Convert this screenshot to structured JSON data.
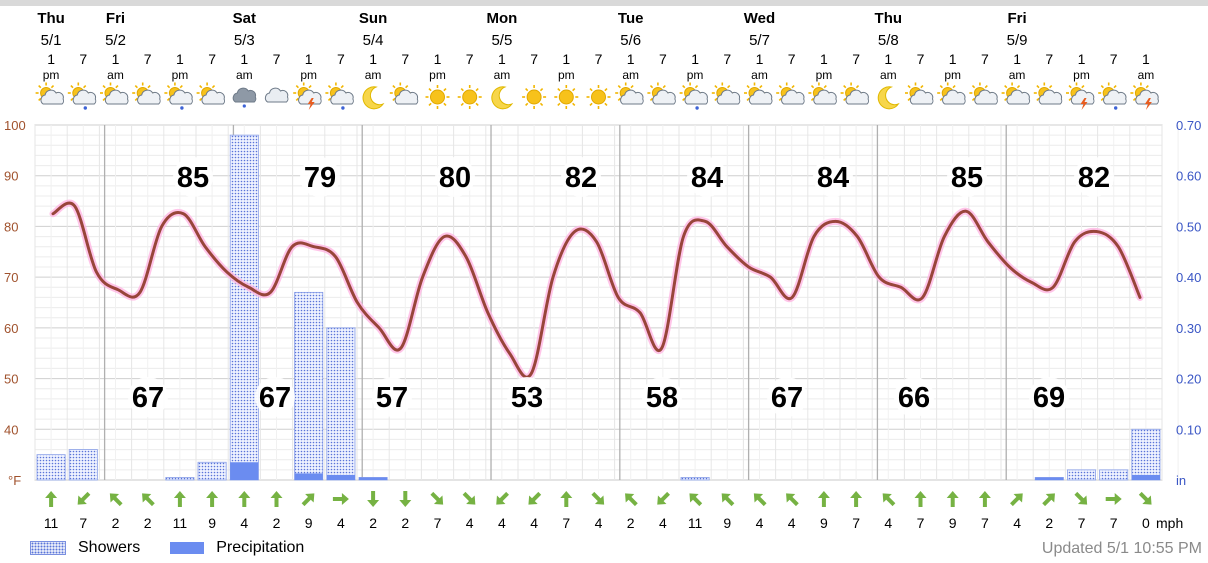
{
  "colors": {
    "temperature": "#98453a",
    "temperature_glow": "#ffb7e3",
    "precipitation": "#6b8cf0",
    "showers": "#5a74d8",
    "wind_arrow": "#76b243",
    "left_axis": "#a0522d",
    "right_axis": "#3a56c5",
    "grid": "#d7d7d7",
    "day_divider": "#b0b0b0"
  },
  "header": {
    "days": [
      {
        "name": "Thu",
        "date": "5/1"
      },
      {
        "name": "Fri",
        "date": "5/2"
      },
      {
        "name": "Sat",
        "date": "5/3"
      },
      {
        "name": "Sun",
        "date": "5/4"
      },
      {
        "name": "Mon",
        "date": "5/5"
      },
      {
        "name": "Tue",
        "date": "5/6"
      },
      {
        "name": "Wed",
        "date": "5/7"
      },
      {
        "name": "Thu",
        "date": "5/8"
      },
      {
        "name": "Fri",
        "date": "5/9"
      }
    ],
    "hours": [
      {
        "hour": "1",
        "ampm": "pm"
      },
      {
        "hour": "7",
        "ampm": ""
      },
      {
        "hour": "1",
        "ampm": "am"
      },
      {
        "hour": "7",
        "ampm": ""
      },
      {
        "hour": "1",
        "ampm": "pm"
      },
      {
        "hour": "7",
        "ampm": ""
      },
      {
        "hour": "1",
        "ampm": "am"
      },
      {
        "hour": "7",
        "ampm": ""
      },
      {
        "hour": "1",
        "ampm": "pm"
      },
      {
        "hour": "7",
        "ampm": ""
      },
      {
        "hour": "1",
        "ampm": "am"
      },
      {
        "hour": "7",
        "ampm": ""
      },
      {
        "hour": "1",
        "ampm": "pm"
      },
      {
        "hour": "7",
        "ampm": ""
      },
      {
        "hour": "1",
        "ampm": "am"
      },
      {
        "hour": "7",
        "ampm": ""
      },
      {
        "hour": "1",
        "ampm": "pm"
      },
      {
        "hour": "7",
        "ampm": ""
      },
      {
        "hour": "1",
        "ampm": "am"
      },
      {
        "hour": "7",
        "ampm": ""
      },
      {
        "hour": "1",
        "ampm": "pm"
      },
      {
        "hour": "7",
        "ampm": ""
      },
      {
        "hour": "1",
        "ampm": "am"
      },
      {
        "hour": "7",
        "ampm": ""
      },
      {
        "hour": "1",
        "ampm": "pm"
      },
      {
        "hour": "7",
        "ampm": ""
      },
      {
        "hour": "1",
        "ampm": "am"
      },
      {
        "hour": "7",
        "ampm": ""
      },
      {
        "hour": "1",
        "ampm": "pm"
      },
      {
        "hour": "7",
        "ampm": ""
      },
      {
        "hour": "1",
        "ampm": "am"
      },
      {
        "hour": "7",
        "ampm": ""
      },
      {
        "hour": "1",
        "ampm": "pm"
      },
      {
        "hour": "7",
        "ampm": ""
      },
      {
        "hour": "1",
        "ampm": "am"
      }
    ],
    "icons": [
      "partly-sunny-icon",
      "partly-sunny-rain-icon",
      "partly-cloudy-icon",
      "partly-cloudy-icon",
      "partly-sunny-rain-icon",
      "partly-sunny-icon",
      "cloudy-rain-icon",
      "cloudy-icon",
      "thunderstorm-icon",
      "partly-cloudy-rain-icon",
      "moon-icon",
      "partly-sunny-icon",
      "sunny-icon",
      "sunny-icon",
      "moon-icon",
      "sunny-icon",
      "sunny-icon",
      "sunny-icon",
      "partly-cloudy-icon",
      "partly-sunny-icon",
      "partly-sunny-rain-icon",
      "partly-sunny-icon",
      "partly-cloudy-icon",
      "partly-cloudy-icon",
      "partly-cloudy-icon",
      "partly-sunny-icon",
      "moon-icon",
      "partly-sunny-icon",
      "partly-cloudy-icon",
      "partly-sunny-icon",
      "partly-cloudy-icon",
      "partly-cloudy-icon",
      "thunderstorm-icon",
      "partly-sunny-rain-icon",
      "thunderstorm-icon"
    ]
  },
  "chart_data": {
    "type": "line",
    "title": "",
    "x_ticks": "1 pm and 7 pm / 1 am and 7 am each day, Thu 5/1 through Fri 5/9",
    "left_axis": {
      "unit": "°F",
      "ticks": [
        100,
        90,
        80,
        70,
        60,
        50,
        40
      ],
      "range": [
        30,
        100
      ]
    },
    "right_axis": {
      "unit": "in",
      "ticks": [
        "0.70",
        "0.60",
        "0.50",
        "0.40",
        "0.30",
        "0.20",
        "0.10"
      ],
      "range": [
        0,
        0.7
      ]
    },
    "grid": true,
    "temperature_f": [
      82.5,
      84,
      71,
      67.5,
      67,
      80,
      82.5,
      76,
      71,
      68,
      67,
      76,
      76,
      74,
      65,
      60,
      56,
      70,
      78,
      74,
      63,
      55,
      51,
      70,
      79,
      77,
      66,
      63,
      56,
      78,
      81,
      76,
      72,
      70,
      66,
      78,
      81,
      78,
      70,
      68,
      66,
      78,
      83,
      77,
      72,
      69,
      68,
      77,
      79,
      76,
      66
    ],
    "temperature_hours_step": 4,
    "highs": [
      {
        "label": "85",
        "day": "Thu"
      },
      {
        "label": "79",
        "day": "Fri"
      },
      {
        "label": "80",
        "day": "Sat"
      },
      {
        "label": "82",
        "day": "Sun"
      },
      {
        "label": "84",
        "day": "Mon"
      },
      {
        "label": "84",
        "day": "Tue"
      },
      {
        "label": "85",
        "day": "Wed"
      },
      {
        "label": "82",
        "day": "Thu"
      }
    ],
    "lows": [
      {
        "label": "67",
        "night": "Thu"
      },
      {
        "label": "67",
        "night": "Fri"
      },
      {
        "label": "57",
        "night": "Sat"
      },
      {
        "label": "53",
        "night": "Sun"
      },
      {
        "label": "58",
        "night": "Mon"
      },
      {
        "label": "67",
        "night": "Tue"
      },
      {
        "label": "66",
        "night": "Wed"
      },
      {
        "label": "69",
        "night": "Thu"
      }
    ],
    "series": [
      {
        "name": "Showers",
        "values": [
          0.05,
          0.06,
          0,
          0,
          0.005,
          0.035,
          0.68,
          0,
          0.37,
          0.3,
          0.005,
          0,
          0,
          0,
          0,
          0,
          0,
          0,
          0,
          0,
          0.005,
          0,
          0,
          0,
          0,
          0,
          0,
          0,
          0,
          0,
          0,
          0.005,
          0.02,
          0.02,
          0.1
        ]
      },
      {
        "name": "Precipitation",
        "values": [
          0,
          0,
          0,
          0,
          0,
          0,
          0.035,
          0,
          0.013,
          0.01,
          0.005,
          0,
          0,
          0,
          0,
          0,
          0,
          0,
          0,
          0,
          0,
          0,
          0,
          0,
          0,
          0,
          0,
          0,
          0,
          0,
          0,
          0.005,
          0,
          0,
          0.01
        ]
      }
    ]
  },
  "wind": {
    "unit": "mph",
    "speeds": [
      "11",
      "7",
      "2",
      "2",
      "11",
      "9",
      "4",
      "2",
      "9",
      "4",
      "2",
      "2",
      "7",
      "4",
      "4",
      "4",
      "7",
      "4",
      "2",
      "4",
      "11",
      "9",
      "4",
      "4",
      "9",
      "7",
      "4",
      "7",
      "9",
      "7",
      "4",
      "2",
      "7",
      "7",
      "0"
    ],
    "arrows": [
      "up",
      "down-left",
      "up-left",
      "up-left",
      "up",
      "up",
      "up",
      "up",
      "up-right",
      "right",
      "down",
      "down",
      "down-right",
      "down-right",
      "down-left",
      "down-left",
      "up",
      "down-right",
      "up-left",
      "down-left",
      "up-left",
      "up-left",
      "up-left",
      "up-left",
      "up",
      "up",
      "up-left",
      "up",
      "up",
      "up",
      "up-right",
      "up-right",
      "down-right",
      "right",
      "down-right"
    ]
  },
  "legend": {
    "showers": "Showers",
    "precipitation": "Precipitation"
  },
  "footer": {
    "updated": "Updated 5/1 10:55 PM"
  }
}
